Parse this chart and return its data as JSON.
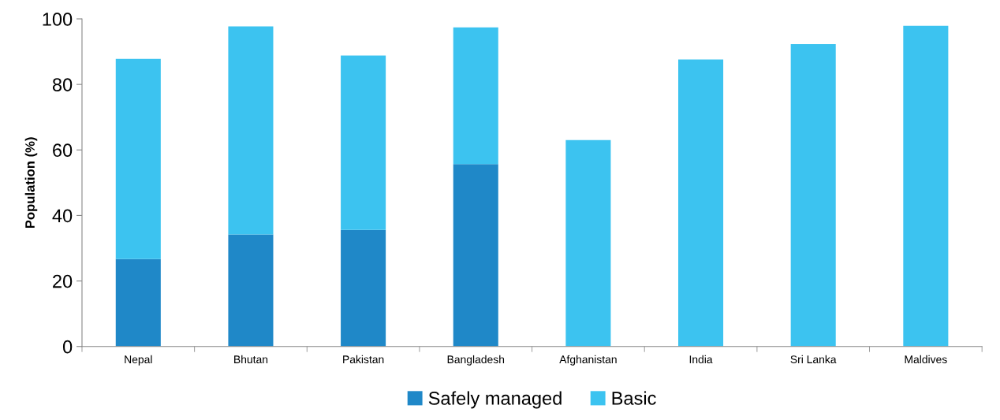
{
  "chart_data": {
    "type": "bar",
    "stacked": true,
    "ylabel": "Population (%)",
    "categories": [
      "Nepal",
      "Bhutan",
      "Pakistan",
      "Bangladesh",
      "Afghanistan",
      "India",
      "Sri Lanka",
      "Maldives"
    ],
    "series": [
      {
        "name": "Safely managed",
        "color": "#1f88c8",
        "values": [
          26.7,
          34.2,
          35.6,
          55.7,
          null,
          null,
          null,
          null
        ]
      },
      {
        "name": "Basic",
        "color": "#3cc3f0",
        "values": [
          61.1,
          63.5,
          53.2,
          41.7,
          63.0,
          87.6,
          92.3,
          97.9
        ]
      }
    ],
    "ylim": [
      0,
      100
    ],
    "yticks": [
      0,
      20,
      40,
      60,
      80,
      100
    ],
    "grid": false,
    "legend": "bottom"
  }
}
